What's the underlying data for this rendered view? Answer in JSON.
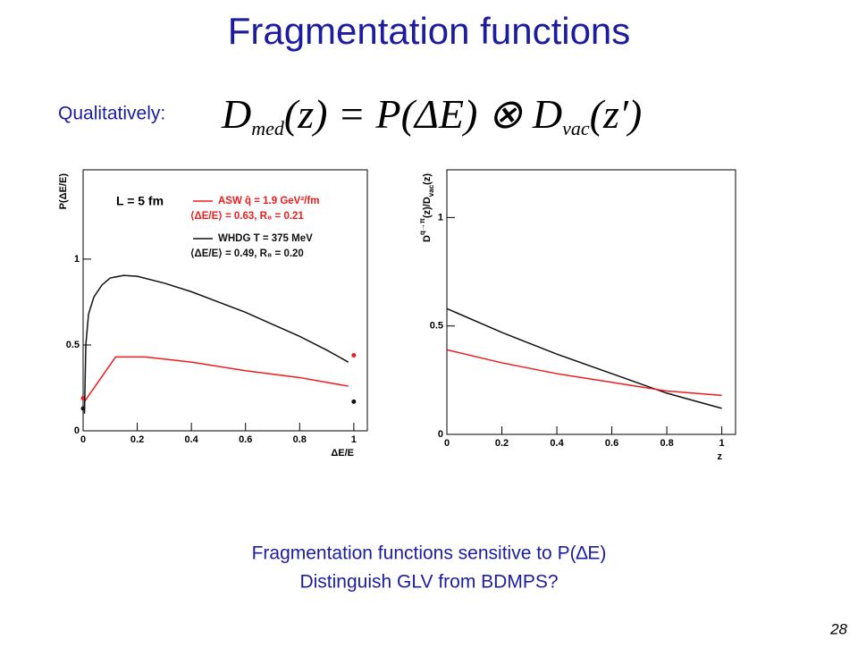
{
  "slide": {
    "title": "Fragmentation functions",
    "intro": "Qualitatively:",
    "formula": [
      "D",
      "med",
      "(z) = P(ΔE) ⊗ ",
      "D",
      "vac",
      "(z′)"
    ],
    "notes": [
      "Fragmentation functions sensitive to P(∆E)",
      "Distinguish GLV from BDMPS?"
    ],
    "page": "28"
  },
  "chart_data": [
    {
      "type": "line",
      "xlabel": "ΔE/E",
      "ylabel": [
        "P(ΔE/E)"
      ],
      "annotation": "L = 5 fm",
      "xlim": [
        0,
        1.05
      ],
      "ylim": [
        0,
        1.52
      ],
      "xticks": [
        0,
        0.2,
        0.4,
        0.6,
        0.8,
        1
      ],
      "yticks": [
        0,
        0.5,
        1
      ],
      "series": [
        {
          "name": "ASW q̂ = 1.9 GeV²/fm",
          "detail": "⟨ΔE/E⟩ = 0.63, R₈ = 0.21",
          "color": "#ee1c1c",
          "x": [
            0.005,
            0.12,
            0.23,
            0.4,
            0.6,
            0.8,
            0.98
          ],
          "values": [
            0.17,
            0.43,
            0.43,
            0.4,
            0.35,
            0.31,
            0.26
          ],
          "endpoints": {
            "x": [
              0,
              1
            ],
            "values": [
              0.19,
              0.44
            ]
          }
        },
        {
          "name": "WHDG T = 375 MeV",
          "detail": "⟨ΔE/E⟩ = 0.49, R₈ = 0.20",
          "color": "#111111",
          "x": [
            0.005,
            0.01,
            0.02,
            0.04,
            0.07,
            0.1,
            0.15,
            0.2,
            0.3,
            0.4,
            0.5,
            0.6,
            0.7,
            0.8,
            0.9,
            0.98
          ],
          "values": [
            0.1,
            0.5,
            0.68,
            0.78,
            0.85,
            0.89,
            0.905,
            0.9,
            0.86,
            0.81,
            0.75,
            0.69,
            0.62,
            0.55,
            0.47,
            0.4
          ],
          "endpoints": {
            "x": [
              0,
              1
            ],
            "values": [
              0.13,
              0.17
            ]
          }
        }
      ]
    },
    {
      "type": "line",
      "xlabel": "z",
      "ylabel": [
        "D",
        "q→π",
        "(z)/D",
        "vac",
        "(z)"
      ],
      "xlim": [
        0,
        1.05
      ],
      "ylim": [
        0,
        1.22
      ],
      "xticks": [
        0,
        0.2,
        0.4,
        0.6,
        0.8,
        1
      ],
      "yticks": [
        0,
        0.5,
        1
      ],
      "series": [
        {
          "color": "#111111",
          "x": [
            0,
            0.2,
            0.4,
            0.6,
            0.8,
            1
          ],
          "values": [
            0.58,
            0.47,
            0.37,
            0.28,
            0.19,
            0.12
          ]
        },
        {
          "color": "#ee1c1c",
          "x": [
            0,
            0.2,
            0.4,
            0.6,
            0.8,
            1
          ],
          "values": [
            0.39,
            0.33,
            0.28,
            0.24,
            0.2,
            0.18
          ]
        }
      ]
    }
  ]
}
